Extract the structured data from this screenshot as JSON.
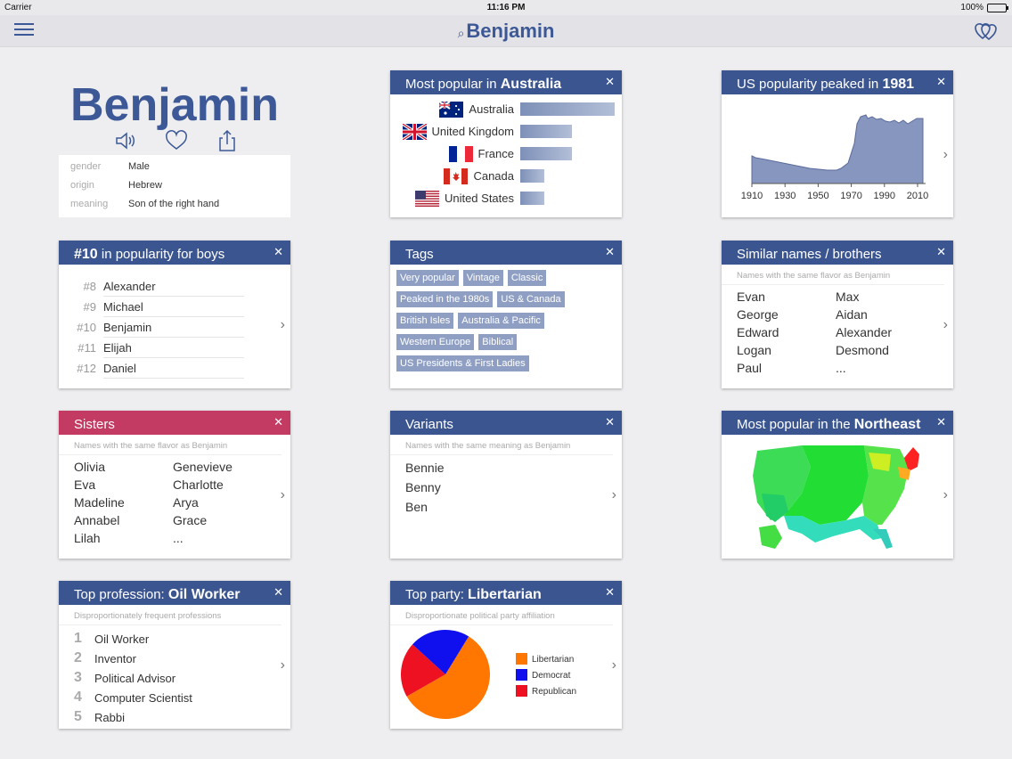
{
  "status": {
    "carrier": "Carrier",
    "time": "11:16 PM",
    "battery": "100%"
  },
  "nav": {
    "title": "Benjamin"
  },
  "hero": {
    "name": "Benjamin",
    "info": [
      {
        "k": "gender",
        "v": "Male"
      },
      {
        "k": "origin",
        "v": "Hebrew"
      },
      {
        "k": "meaning",
        "v": "Son of the right hand"
      }
    ]
  },
  "popular_country": {
    "title_pre": "Most popular in ",
    "title_bold": "Australia",
    "rows": [
      {
        "country": "Australia",
        "value": 1.0,
        "flag": "australia-flag"
      },
      {
        "country": "United Kingdom",
        "value": 0.55,
        "flag": "uk-flag"
      },
      {
        "country": "France",
        "value": 0.55,
        "flag": "france-flag"
      },
      {
        "country": "Canada",
        "value": 0.25,
        "flag": "canada-flag"
      },
      {
        "country": "United States",
        "value": 0.25,
        "flag": "us-flag"
      }
    ]
  },
  "us_peak": {
    "title_pre": "US popularity peaked in ",
    "title_bold": "1981",
    "ticks": [
      "1910",
      "1930",
      "1950",
      "1970",
      "1990",
      "2010"
    ]
  },
  "rank": {
    "title_bold": "#10",
    "title_post": " in popularity for boys",
    "rows": [
      {
        "n": "#8",
        "name": "Alexander"
      },
      {
        "n": "#9",
        "name": "Michael"
      },
      {
        "n": "#10",
        "name": "Benjamin"
      },
      {
        "n": "#11",
        "name": "Elijah"
      },
      {
        "n": "#12",
        "name": "Daniel"
      }
    ]
  },
  "tags": {
    "title": "Tags",
    "items": [
      "Very popular",
      "Vintage",
      "Classic",
      "Peaked in the 1980s",
      "US & Canada",
      "British Isles",
      "Australia & Pacific",
      "Western Europe",
      "Biblical",
      "US Presidents & First Ladies"
    ]
  },
  "similar": {
    "title": "Similar names / brothers",
    "sub": "Names with the same flavor as Benjamin",
    "names": [
      "Evan",
      "Max",
      "George",
      "Aidan",
      "Edward",
      "Alexander",
      "Logan",
      "Desmond",
      "Paul",
      "..."
    ]
  },
  "sisters": {
    "title": "Sisters",
    "sub": "Names with the same flavor as Benjamin",
    "names": [
      "Olivia",
      "Genevieve",
      "Eva",
      "Charlotte",
      "Madeline",
      "Arya",
      "Annabel",
      "Grace",
      "Lilah",
      "..."
    ]
  },
  "variants": {
    "title": "Variants",
    "sub": "Names with the same meaning as Benjamin",
    "names": [
      "Bennie",
      "Benny",
      "Ben"
    ]
  },
  "region": {
    "title_pre": "Most popular in the ",
    "title_bold": "Northeast"
  },
  "profession": {
    "title_pre": "Top profession: ",
    "title_bold": "Oil Worker",
    "sub": "Disproportionately frequent professions",
    "rows": [
      {
        "n": "1",
        "name": "Oil Worker"
      },
      {
        "n": "2",
        "name": "Inventor"
      },
      {
        "n": "3",
        "name": "Political Advisor"
      },
      {
        "n": "4",
        "name": "Computer Scientist"
      },
      {
        "n": "5",
        "name": "Rabbi"
      }
    ]
  },
  "party": {
    "title_pre": "Top party: ",
    "title_bold": "Libertarian",
    "sub": "Disproportionate political party affiliation",
    "legend": [
      {
        "name": "Libertarian",
        "color": "#ff7700",
        "share": 0.58
      },
      {
        "name": "Democrat",
        "color": "#1010ee",
        "share": 0.22
      },
      {
        "name": "Republican",
        "color": "#ee1122",
        "share": 0.2
      }
    ]
  },
  "colors": {
    "accent": "#3b5590",
    "pink": "#c33a62"
  }
}
